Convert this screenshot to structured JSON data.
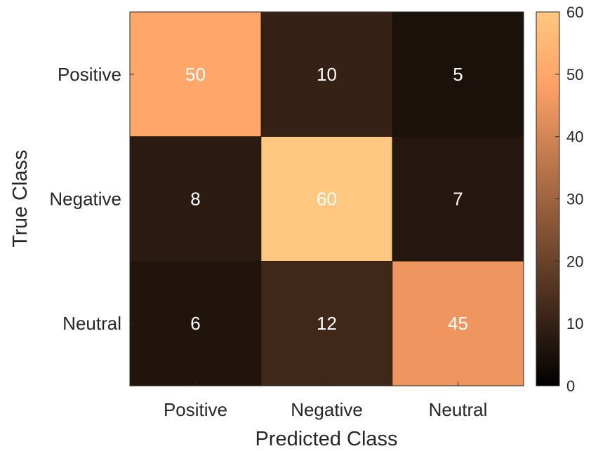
{
  "chart_data": {
    "type": "heatmap",
    "title": "",
    "xlabel": "Predicted Class",
    "ylabel": "True Class",
    "x_categories": [
      "Positive",
      "Negative",
      "Neutral"
    ],
    "y_categories": [
      "Positive",
      "Negative",
      "Neutral"
    ],
    "values": [
      [
        50,
        10,
        5
      ],
      [
        8,
        60,
        7
      ],
      [
        6,
        12,
        45
      ]
    ],
    "colorbar": {
      "min": 0,
      "max": 60,
      "ticks": [
        0,
        10,
        20,
        30,
        40,
        50,
        60
      ],
      "colormap": "copper"
    },
    "cell_label_color": "#ffffff",
    "axis_color": "#262626"
  }
}
